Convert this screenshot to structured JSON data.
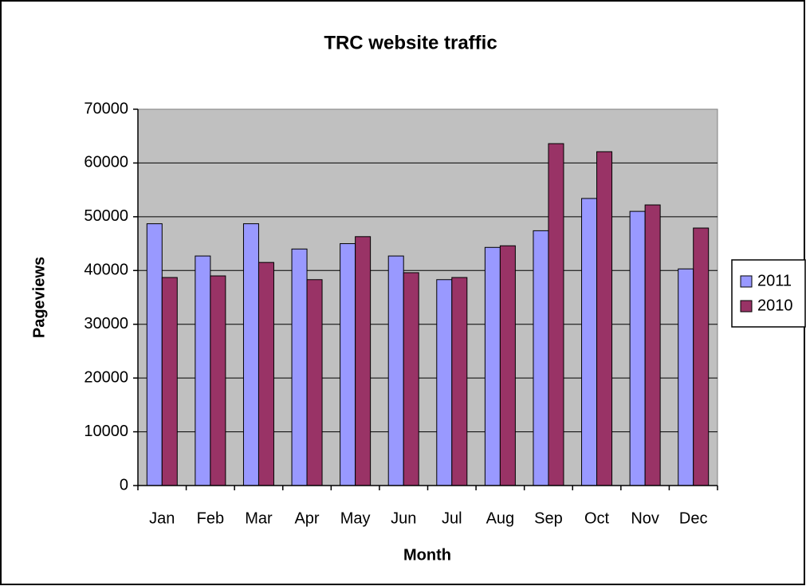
{
  "chart_data": {
    "type": "bar",
    "title": "TRC website traffic",
    "x_label": "Month",
    "y_label": "Pageviews",
    "categories": [
      "Jan",
      "Feb",
      "Mar",
      "Apr",
      "May",
      "Jun",
      "Jul",
      "Aug",
      "Sep",
      "Oct",
      "Nov",
      "Dec"
    ],
    "series": [
      {
        "name": "2011",
        "color": "#9999ff",
        "values": [
          48700,
          42700,
          48700,
          44000,
          45000,
          42700,
          38300,
          44300,
          47400,
          53400,
          51000,
          40300
        ]
      },
      {
        "name": "2010",
        "color": "#993366",
        "values": [
          38700,
          39000,
          41500,
          38300,
          46300,
          39600,
          38700,
          44600,
          63600,
          62100,
          52200,
          47900
        ]
      }
    ],
    "ylim": [
      0,
      70000
    ],
    "yticks": [
      0,
      10000,
      20000,
      30000,
      40000,
      50000,
      60000,
      70000
    ],
    "grid": true,
    "legend": "right",
    "plot_background": "#c0c0c0"
  }
}
